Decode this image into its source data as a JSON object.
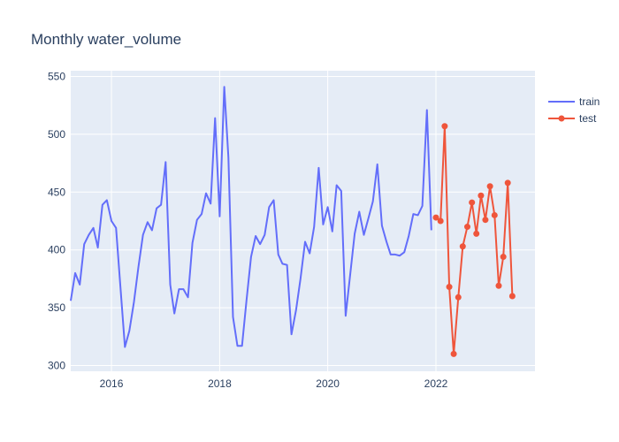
{
  "chart_data": {
    "type": "line",
    "title": "Monthly water_volume",
    "xlabel": "",
    "ylabel": "",
    "xlim": [
      "2015-04-01",
      "2023-11-01"
    ],
    "ylim": [
      295,
      555
    ],
    "x_ticks": [
      {
        "value": "2016-01-01",
        "label": "2016"
      },
      {
        "value": "2018-01-01",
        "label": "2018"
      },
      {
        "value": "2020-01-01",
        "label": "2020"
      },
      {
        "value": "2022-01-01",
        "label": "2022"
      }
    ],
    "y_ticks": [
      300,
      350,
      400,
      450,
      500,
      550
    ],
    "grid": true,
    "legend_position": "top-right",
    "series": [
      {
        "name": "train",
        "color": "#636efa",
        "mode": "lines",
        "x": [
          "2015-04",
          "2015-05",
          "2015-06",
          "2015-07",
          "2015-08",
          "2015-09",
          "2015-10",
          "2015-11",
          "2015-12",
          "2016-01",
          "2016-02",
          "2016-03",
          "2016-04",
          "2016-05",
          "2016-06",
          "2016-07",
          "2016-08",
          "2016-09",
          "2016-10",
          "2016-11",
          "2016-12",
          "2017-01",
          "2017-02",
          "2017-03",
          "2017-04",
          "2017-05",
          "2017-06",
          "2017-07",
          "2017-08",
          "2017-09",
          "2017-10",
          "2017-11",
          "2017-12",
          "2018-01",
          "2018-02",
          "2018-03",
          "2018-04",
          "2018-05",
          "2018-06",
          "2018-07",
          "2018-08",
          "2018-09",
          "2018-10",
          "2018-11",
          "2018-12",
          "2019-01",
          "2019-02",
          "2019-03",
          "2019-04",
          "2019-05",
          "2019-06",
          "2019-07",
          "2019-08",
          "2019-09",
          "2019-10",
          "2019-11",
          "2019-12",
          "2020-01",
          "2020-02",
          "2020-03",
          "2020-04",
          "2020-05",
          "2020-06",
          "2020-07",
          "2020-08",
          "2020-09",
          "2020-10",
          "2020-11",
          "2020-12",
          "2021-01",
          "2021-02",
          "2021-03",
          "2021-04",
          "2021-05",
          "2021-06",
          "2021-07",
          "2021-08",
          "2021-09",
          "2021-10",
          "2021-11",
          "2021-12"
        ],
        "values": [
          356,
          380,
          370,
          405,
          413,
          419,
          402,
          439,
          443,
          425,
          419,
          369,
          316,
          330,
          355,
          385,
          413,
          424,
          417,
          436,
          439,
          476,
          370,
          345,
          366,
          366,
          359,
          406,
          426,
          431,
          449,
          440,
          514,
          429,
          541,
          480,
          342,
          317,
          317,
          356,
          394,
          412,
          405,
          413,
          437,
          443,
          396,
          388,
          387,
          327,
          348,
          375,
          407,
          397,
          420,
          471,
          422,
          437,
          416,
          456,
          451,
          343,
          379,
          414,
          433,
          413,
          427,
          442,
          474,
          421,
          407,
          396,
          396,
          395,
          398,
          412,
          431,
          430,
          438,
          521,
          417
        ]
      },
      {
        "name": "test",
        "color": "#ef553b",
        "mode": "lines+markers",
        "x": [
          "2022-01",
          "2022-02",
          "2022-03",
          "2022-04",
          "2022-05",
          "2022-06",
          "2022-07",
          "2022-08",
          "2022-09",
          "2022-10",
          "2022-11",
          "2022-12",
          "2023-01",
          "2023-02",
          "2023-03",
          "2023-04",
          "2023-05",
          "2023-06"
        ],
        "values": [
          428,
          425,
          507,
          368,
          310,
          359,
          403,
          420,
          441,
          414,
          447,
          426,
          455,
          430,
          369,
          394,
          458,
          360
        ]
      }
    ]
  }
}
